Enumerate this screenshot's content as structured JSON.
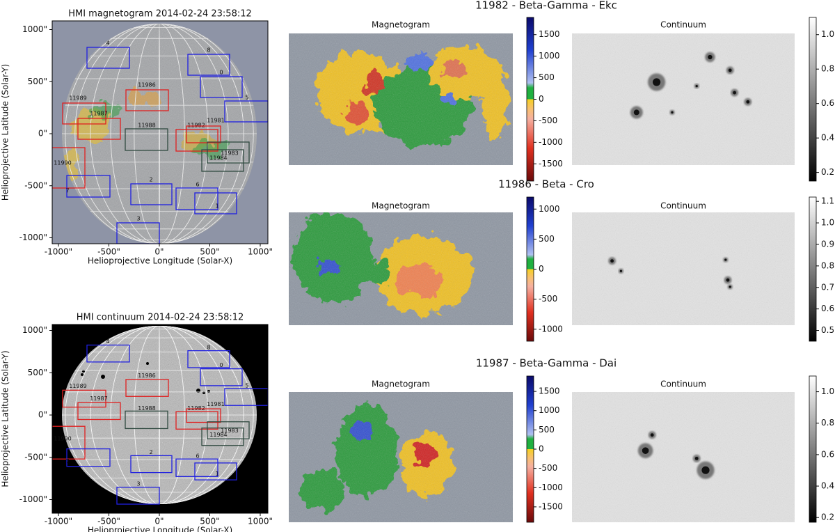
{
  "disk_panels": [
    {
      "title": "HMI magnetogram 2014-02-24 23:58:12",
      "xlabel": "Helioprojective Longitude (Solar-X)",
      "ylabel": "Helioprojective Latitude (Solar-Y)",
      "xticks": [
        {
          "value": -1000,
          "label": "-1000\""
        },
        {
          "value": -500,
          "label": "-500\""
        },
        {
          "value": 0,
          "label": "0\""
        },
        {
          "value": 500,
          "label": "500\""
        },
        {
          "value": 1000,
          "label": "1000\""
        }
      ],
      "yticks": [
        {
          "value": -1000,
          "label": "-1000\""
        },
        {
          "value": -500,
          "label": "-500\""
        },
        {
          "value": 0,
          "label": "0\""
        },
        {
          "value": 500,
          "label": "500\""
        },
        {
          "value": 1000,
          "label": "1000\""
        }
      ]
    },
    {
      "title": "HMI continuum 2014-02-24 23:58:12",
      "xlabel": "Helioprojective Longitude (Solar-X)",
      "ylabel": "Helioprojective Latitude (Solar-Y)",
      "xticks": [
        {
          "value": -1000,
          "label": "-1000\""
        },
        {
          "value": -500,
          "label": "-500\""
        },
        {
          "value": 0,
          "label": "0\""
        },
        {
          "value": 500,
          "label": "500\""
        },
        {
          "value": 1000,
          "label": "1000\""
        }
      ],
      "yticks": [
        {
          "value": -1000,
          "label": "-1000\""
        },
        {
          "value": -500,
          "label": "-500\""
        },
        {
          "value": 0,
          "label": "0\""
        },
        {
          "value": 500,
          "label": "500\""
        },
        {
          "value": 1000,
          "label": "1000\""
        }
      ]
    }
  ],
  "region_labels": [
    "4",
    "8",
    "0",
    "5",
    "11989",
    "11986",
    "11987",
    "11988",
    "11982",
    "11981",
    "11983",
    "11984",
    "11990",
    "7",
    "2",
    "6",
    "1",
    "3"
  ],
  "cutouts": [
    {
      "title": "11982 - Beta-Gamma - Ekc",
      "magnetogram": {
        "title": "Magnetogram",
        "clim": [
          -1900,
          1900
        ],
        "ticks": [
          1500,
          1000,
          500,
          0,
          -500,
          -1000,
          -1500
        ]
      },
      "continuum": {
        "title": "Continuum",
        "clim": [
          0.15,
          1.1
        ],
        "ticks": [
          {
            "value": 1,
            "label": "1.0"
          },
          0.8,
          0.6,
          0.4,
          0.2
        ]
      }
    },
    {
      "title": "11986 - Beta - Cro",
      "magnetogram": {
        "title": "Magnetogram",
        "clim": [
          -1200,
          1200
        ],
        "ticks": [
          1000,
          500,
          0,
          -500,
          -1000
        ]
      },
      "continuum": {
        "title": "Continuum",
        "clim": [
          0.45,
          1.12
        ],
        "ticks": [
          1.1,
          {
            "value": 1,
            "label": "1.0"
          },
          0.9,
          0.8,
          0.7,
          0.6,
          0.5
        ]
      }
    },
    {
      "title": "11987 - Beta-Gamma - Dai",
      "magnetogram": {
        "title": "Magnetogram",
        "clim": [
          -1900,
          1900
        ],
        "ticks": [
          1500,
          1000,
          500,
          0,
          -500,
          -1000,
          -1500
        ]
      },
      "continuum": {
        "title": "Continuum",
        "clim": [
          0.17,
          1.1
        ],
        "ticks": [
          {
            "value": 1,
            "label": "1.0"
          },
          0.8,
          0.6,
          0.4,
          0.2
        ]
      }
    }
  ]
}
